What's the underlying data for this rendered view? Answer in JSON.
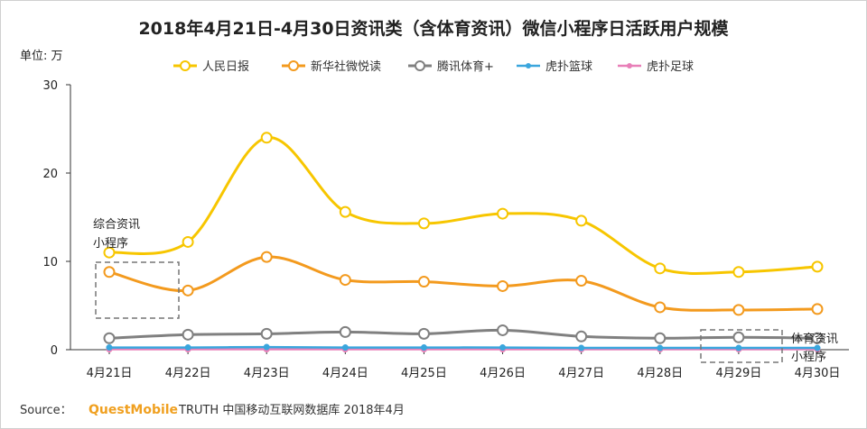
{
  "chart_data": {
    "type": "line",
    "title": "2018年4月21日-4月30日资讯类（含体育资讯）微信小程序日活跃用户规模",
    "ylabel": "单位: 万",
    "xlabel": "",
    "ylim": [
      0,
      30
    ],
    "yticks": [
      0,
      10,
      20,
      30
    ],
    "categories": [
      "4月21日",
      "4月22日",
      "4月23日",
      "4月24日",
      "4月25日",
      "4月26日",
      "4月27日",
      "4月28日",
      "4月29日",
      "4月30日"
    ],
    "legend_position": "top",
    "grid": false,
    "smooth": true,
    "series": [
      {
        "name": "人民日报",
        "color": "#f7c600",
        "values": [
          11.0,
          12.2,
          24.0,
          15.6,
          14.3,
          15.4,
          14.6,
          9.2,
          8.8,
          9.4
        ]
      },
      {
        "name": "新华社微悦读",
        "color": "#f39a1e",
        "values": [
          8.8,
          6.7,
          10.5,
          7.9,
          7.7,
          7.2,
          7.8,
          4.8,
          4.5,
          4.6
        ]
      },
      {
        "name": "腾讯体育+",
        "color": "#808080",
        "values": [
          1.3,
          1.7,
          1.8,
          2.0,
          1.8,
          2.2,
          1.5,
          1.3,
          1.4,
          1.3
        ]
      },
      {
        "name": "虎扑篮球",
        "color": "#3aa6dd",
        "values": [
          0.25,
          0.25,
          0.3,
          0.25,
          0.25,
          0.25,
          0.2,
          0.2,
          0.2,
          0.2
        ]
      },
      {
        "name": "虎扑足球",
        "color": "#e87fb8",
        "values": [
          0.05,
          0.05,
          0.05,
          0.05,
          0.05,
          0.05,
          0.05,
          0.05,
          0.05,
          0.05
        ]
      }
    ],
    "annotations": [
      {
        "text_lines": [
          "综合资讯",
          "小程序"
        ]
      },
      {
        "text_lines": [
          "体育资讯",
          "小程序"
        ]
      }
    ]
  },
  "source": {
    "label": "Source：",
    "brand": "QuestMobile",
    "rest": "TRUTH 中国移动互联网数据库 2018年4月"
  }
}
